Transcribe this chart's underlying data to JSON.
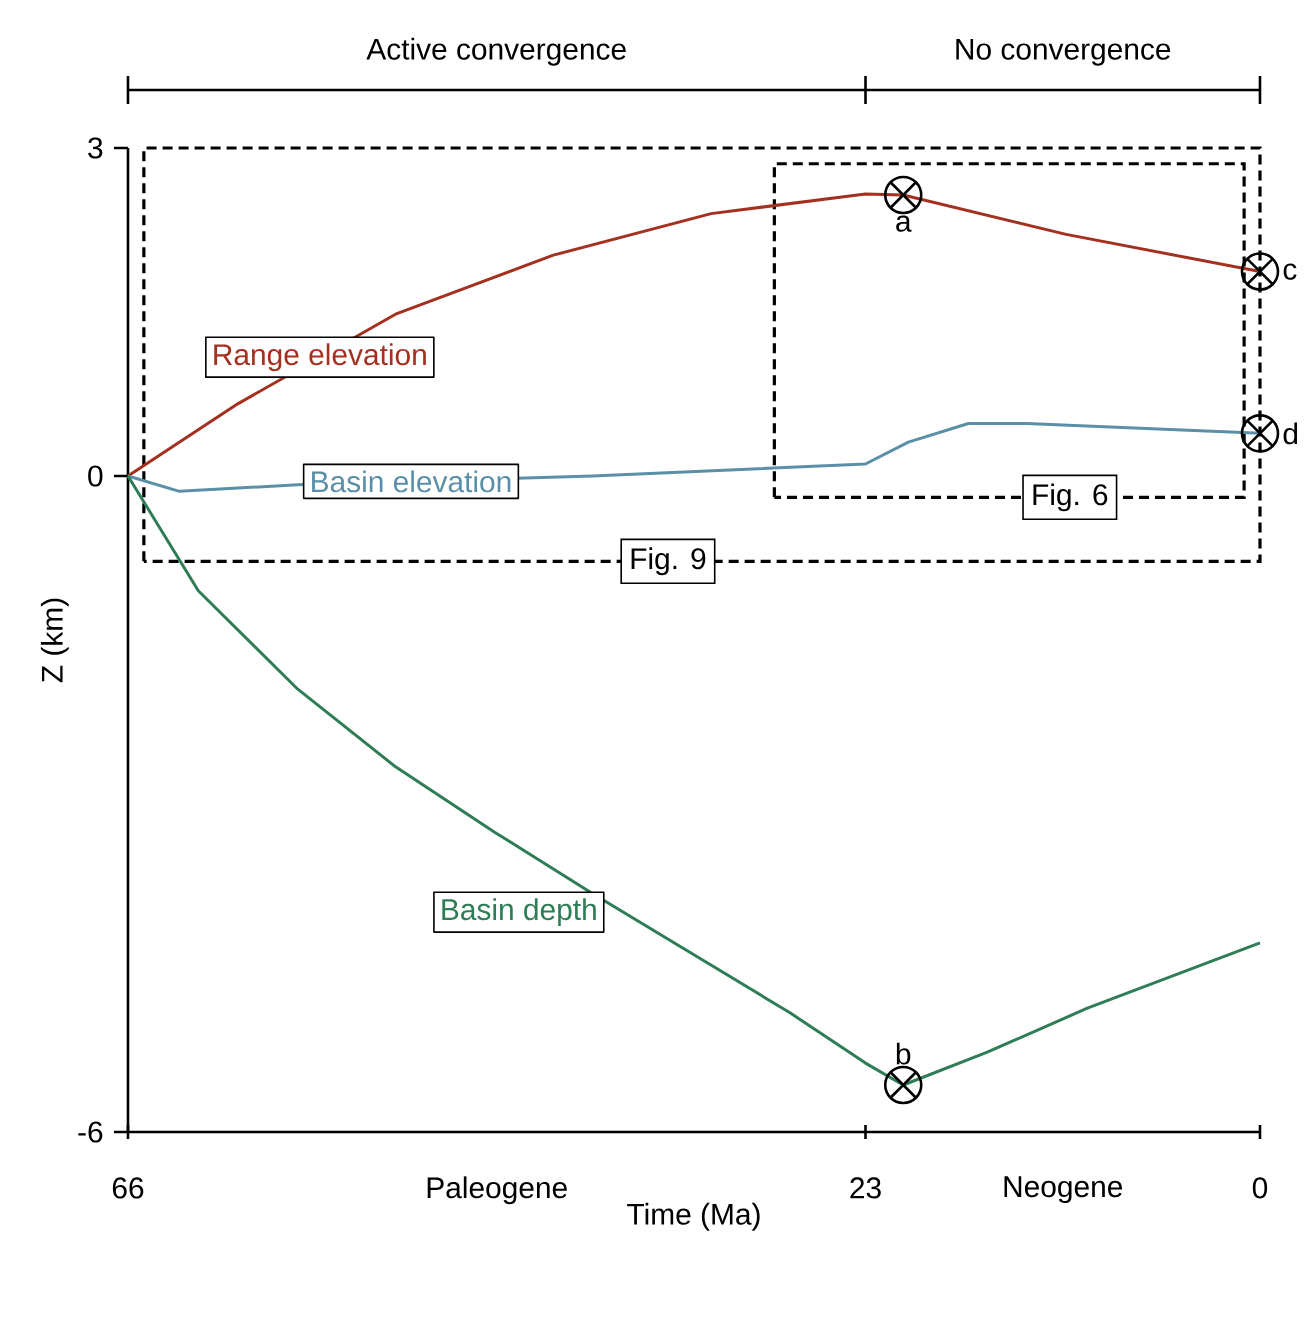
{
  "chart_data": {
    "type": "line",
    "xlabel": "Time (Ma)",
    "ylabel": "Z (km)",
    "xlim": [
      66,
      0
    ],
    "xticks": [
      66,
      23,
      0
    ],
    "ylim": [
      -6,
      3
    ],
    "yticks": [
      -6,
      0,
      3
    ],
    "series": [
      {
        "name": "Range elevation",
        "color": "#a4301f",
        "x": [
          66,
          59.6,
          50.4,
          41.2,
          32.0,
          23,
          20.8,
          11.3,
          0
        ],
        "values": [
          0,
          0.66,
          1.48,
          2.02,
          2.4,
          2.58,
          2.57,
          2.21,
          1.87
        ]
      },
      {
        "name": "Basin elevation",
        "color": "#5a8fa8",
        "x": [
          66,
          63,
          56.1,
          38.9,
          23,
          20.5,
          17,
          13.6,
          0
        ],
        "values": [
          0,
          -0.14,
          -0.08,
          0,
          0.11,
          0.31,
          0.48,
          0.48,
          0.39
        ]
      },
      {
        "name": "Basin depth",
        "color": "#2e7d55",
        "x": [
          66,
          61.9,
          56.1,
          50.4,
          44.6,
          38.9,
          33.1,
          27.4,
          23,
          20.8,
          15.9,
          10.1,
          0
        ],
        "values": [
          0,
          -1.05,
          -1.95,
          -2.66,
          -3.26,
          -3.82,
          -4.37,
          -4.91,
          -5.37,
          -5.57,
          -5.27,
          -4.87,
          -4.27
        ]
      },
      {
        "type": "scatter",
        "marker": "cross",
        "color": "#000000",
        "x": [
          20.8,
          20.8,
          0,
          0
        ],
        "values": [
          2.57,
          -5.57,
          1.87,
          0.39
        ],
        "value_labels": [
          "a",
          "b",
          "c",
          "d"
        ]
      }
    ],
    "annotations": [
      "Active convergence",
      "No convergence",
      "Paleogene",
      "Neogene",
      "Fig. 9",
      "Fig. 6"
    ]
  }
}
